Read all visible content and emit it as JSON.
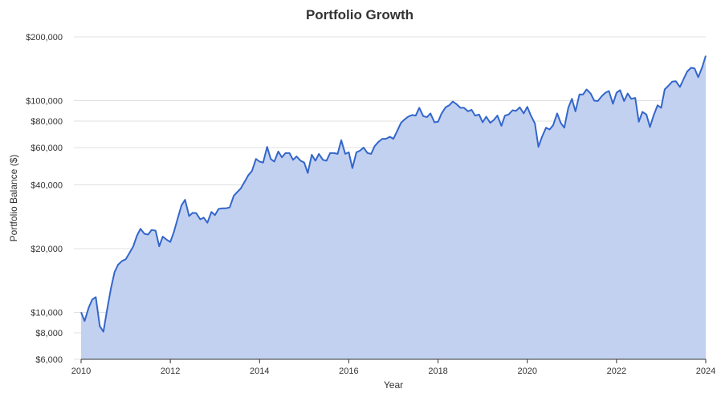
{
  "chart_data": {
    "type": "area",
    "title": "Portfolio Growth",
    "xlabel": "Year",
    "ylabel": "Portfolio Balance ($)",
    "y_scale": "log",
    "ylim": [
      6000,
      200000
    ],
    "xlim": [
      2010,
      2024
    ],
    "grid": true,
    "legend": "none",
    "x_ticks": [
      {
        "value": 2010,
        "label": "2010"
      },
      {
        "value": 2012,
        "label": "2012"
      },
      {
        "value": 2014,
        "label": "2014"
      },
      {
        "value": 2016,
        "label": "2016"
      },
      {
        "value": 2018,
        "label": "2018"
      },
      {
        "value": 2020,
        "label": "2020"
      },
      {
        "value": 2022,
        "label": "2022"
      },
      {
        "value": 2024,
        "label": "2024"
      }
    ],
    "y_ticks": [
      {
        "value": 6000,
        "label": "$6,000"
      },
      {
        "value": 8000,
        "label": "$8,000"
      },
      {
        "value": 10000,
        "label": "$10,000"
      },
      {
        "value": 20000,
        "label": "$20,000"
      },
      {
        "value": 40000,
        "label": "$40,000"
      },
      {
        "value": 60000,
        "label": "$60,000"
      },
      {
        "value": 80000,
        "label": "$80,000"
      },
      {
        "value": 100000,
        "label": "$100,000"
      },
      {
        "value": 200000,
        "label": "$200,000"
      }
    ],
    "colors": {
      "line": "#3366cc",
      "fill": "#c3d1f0",
      "grid": "#e0e0e0"
    },
    "series": [
      {
        "points": [
          [
            2010.0,
            10000
          ],
          [
            2010.08,
            9100
          ],
          [
            2010.17,
            10500
          ],
          [
            2010.25,
            11500
          ],
          [
            2010.33,
            11800
          ],
          [
            2010.42,
            8600
          ],
          [
            2010.5,
            8100
          ],
          [
            2010.58,
            10200
          ],
          [
            2010.67,
            13000
          ],
          [
            2010.75,
            15500
          ],
          [
            2010.83,
            16800
          ],
          [
            2010.92,
            17500
          ],
          [
            2011.0,
            17800
          ],
          [
            2011.08,
            19000
          ],
          [
            2011.17,
            20500
          ],
          [
            2011.25,
            23000
          ],
          [
            2011.33,
            24800
          ],
          [
            2011.42,
            23500
          ],
          [
            2011.5,
            23300
          ],
          [
            2011.58,
            24500
          ],
          [
            2011.67,
            24300
          ],
          [
            2011.75,
            20500
          ],
          [
            2011.83,
            22800
          ],
          [
            2011.92,
            22000
          ],
          [
            2012.0,
            21500
          ],
          [
            2012.08,
            24000
          ],
          [
            2012.17,
            28000
          ],
          [
            2012.25,
            32000
          ],
          [
            2012.33,
            34000
          ],
          [
            2012.42,
            28500
          ],
          [
            2012.5,
            29500
          ],
          [
            2012.58,
            29400
          ],
          [
            2012.67,
            27500
          ],
          [
            2012.75,
            28000
          ],
          [
            2012.83,
            26500
          ],
          [
            2012.92,
            29800
          ],
          [
            2013.0,
            28800
          ],
          [
            2013.08,
            30800
          ],
          [
            2013.17,
            31000
          ],
          [
            2013.25,
            31000
          ],
          [
            2013.33,
            31300
          ],
          [
            2013.42,
            35500
          ],
          [
            2013.5,
            37000
          ],
          [
            2013.58,
            38500
          ],
          [
            2013.67,
            41500
          ],
          [
            2013.75,
            44500
          ],
          [
            2013.83,
            46500
          ],
          [
            2013.92,
            53000
          ],
          [
            2014.0,
            51500
          ],
          [
            2014.08,
            51000
          ],
          [
            2014.17,
            60500
          ],
          [
            2014.25,
            53000
          ],
          [
            2014.33,
            51500
          ],
          [
            2014.42,
            57500
          ],
          [
            2014.5,
            54000
          ],
          [
            2014.58,
            56500
          ],
          [
            2014.67,
            56500
          ],
          [
            2014.75,
            52500
          ],
          [
            2014.83,
            54500
          ],
          [
            2014.92,
            52000
          ],
          [
            2015.0,
            51000
          ],
          [
            2015.08,
            45500
          ],
          [
            2015.17,
            55500
          ],
          [
            2015.25,
            52000
          ],
          [
            2015.33,
            56000
          ],
          [
            2015.42,
            52500
          ],
          [
            2015.5,
            52000
          ],
          [
            2015.58,
            56500
          ],
          [
            2015.67,
            56500
          ],
          [
            2015.75,
            56000
          ],
          [
            2015.83,
            65000
          ],
          [
            2015.92,
            56000
          ],
          [
            2016.0,
            57000
          ],
          [
            2016.08,
            48000
          ],
          [
            2016.17,
            57000
          ],
          [
            2016.25,
            58000
          ],
          [
            2016.33,
            60000
          ],
          [
            2016.42,
            56500
          ],
          [
            2016.5,
            56000
          ],
          [
            2016.58,
            61000
          ],
          [
            2016.67,
            64000
          ],
          [
            2016.75,
            66000
          ],
          [
            2016.83,
            66000
          ],
          [
            2016.92,
            67500
          ],
          [
            2017.0,
            66000
          ],
          [
            2017.08,
            71500
          ],
          [
            2017.17,
            78500
          ],
          [
            2017.25,
            81500
          ],
          [
            2017.33,
            84000
          ],
          [
            2017.42,
            85500
          ],
          [
            2017.5,
            85000
          ],
          [
            2017.58,
            92500
          ],
          [
            2017.67,
            84500
          ],
          [
            2017.75,
            83500
          ],
          [
            2017.83,
            87000
          ],
          [
            2017.92,
            79000
          ],
          [
            2018.0,
            79500
          ],
          [
            2018.08,
            87000
          ],
          [
            2018.17,
            93000
          ],
          [
            2018.25,
            95000
          ],
          [
            2018.33,
            99000
          ],
          [
            2018.42,
            96000
          ],
          [
            2018.5,
            92500
          ],
          [
            2018.58,
            92500
          ],
          [
            2018.67,
            89000
          ],
          [
            2018.75,
            90500
          ],
          [
            2018.83,
            85000
          ],
          [
            2018.92,
            86000
          ],
          [
            2019.0,
            79000
          ],
          [
            2019.08,
            84000
          ],
          [
            2019.17,
            78500
          ],
          [
            2019.25,
            81000
          ],
          [
            2019.33,
            85000
          ],
          [
            2019.42,
            76000
          ],
          [
            2019.5,
            85000
          ],
          [
            2019.58,
            86000
          ],
          [
            2019.67,
            90000
          ],
          [
            2019.75,
            89500
          ],
          [
            2019.83,
            93000
          ],
          [
            2019.92,
            87000
          ],
          [
            2020.0,
            93500
          ],
          [
            2020.08,
            85000
          ],
          [
            2020.17,
            78000
          ],
          [
            2020.25,
            60500
          ],
          [
            2020.33,
            67500
          ],
          [
            2020.42,
            74500
          ],
          [
            2020.5,
            73000
          ],
          [
            2020.58,
            76500
          ],
          [
            2020.67,
            87000
          ],
          [
            2020.75,
            78500
          ],
          [
            2020.83,
            74500
          ],
          [
            2020.92,
            92500
          ],
          [
            2021.0,
            102000
          ],
          [
            2021.08,
            89000
          ],
          [
            2021.17,
            107000
          ],
          [
            2021.25,
            107000
          ],
          [
            2021.33,
            113000
          ],
          [
            2021.42,
            108000
          ],
          [
            2021.5,
            100000
          ],
          [
            2021.58,
            99500
          ],
          [
            2021.67,
            105000
          ],
          [
            2021.75,
            109000
          ],
          [
            2021.83,
            111000
          ],
          [
            2021.92,
            96500
          ],
          [
            2022.0,
            109000
          ],
          [
            2022.08,
            112000
          ],
          [
            2022.17,
            99500
          ],
          [
            2022.25,
            108000
          ],
          [
            2022.33,
            102000
          ],
          [
            2022.42,
            103000
          ],
          [
            2022.5,
            79500
          ],
          [
            2022.58,
            88500
          ],
          [
            2022.67,
            86000
          ],
          [
            2022.75,
            75000
          ],
          [
            2022.83,
            85000
          ],
          [
            2022.92,
            95000
          ],
          [
            2023.0,
            92500
          ],
          [
            2023.08,
            113000
          ],
          [
            2023.17,
            118000
          ],
          [
            2023.25,
            123000
          ],
          [
            2023.33,
            123500
          ],
          [
            2023.42,
            116000
          ],
          [
            2023.5,
            126000
          ],
          [
            2023.58,
            137000
          ],
          [
            2023.67,
            143000
          ],
          [
            2023.75,
            142000
          ],
          [
            2023.83,
            129000
          ],
          [
            2023.92,
            144000
          ],
          [
            2024.0,
            163000
          ]
        ]
      }
    ]
  }
}
